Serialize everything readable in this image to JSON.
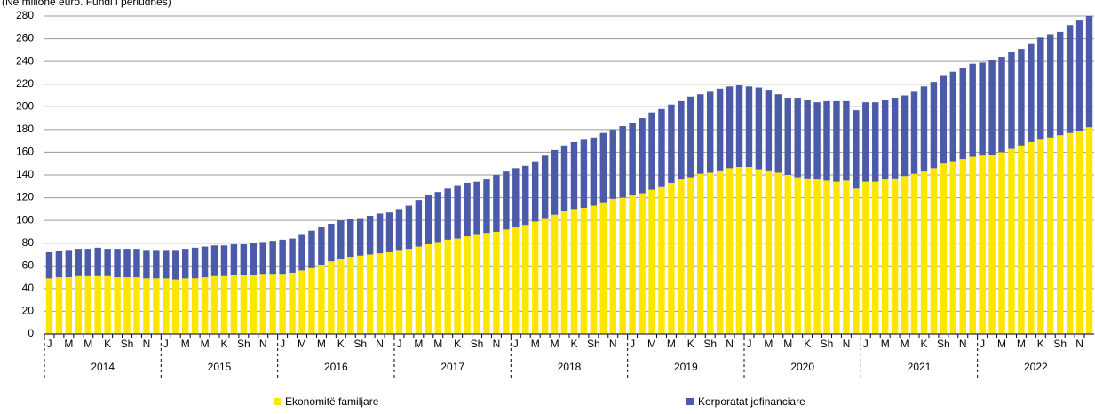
{
  "chart_data": {
    "type": "stacked_bar",
    "subtitle": "(Në milionë euro. Fundi i periudhës)",
    "categories": [
      "J",
      null,
      "M",
      null,
      "M",
      null,
      "K",
      null,
      "Sh",
      null,
      "N",
      null,
      "J",
      null,
      "M",
      null,
      "M",
      null,
      "K",
      null,
      "Sh",
      null,
      "N",
      null,
      "J",
      null,
      "M",
      null,
      "M",
      null,
      "K",
      null,
      "Sh",
      null,
      "N",
      null,
      "J",
      null,
      "M",
      null,
      "M",
      null,
      "K",
      null,
      "Sh",
      null,
      "N",
      null,
      "J",
      null,
      "M",
      null,
      "M",
      null,
      "K",
      null,
      "Sh",
      null,
      "N",
      null,
      "J",
      null,
      "M",
      null,
      "M",
      null,
      "K",
      null,
      "Sh",
      null,
      "N",
      null,
      "J",
      null,
      "M",
      null,
      "M",
      null,
      "K",
      null,
      "Sh",
      null,
      "N",
      null,
      "J",
      null,
      "M",
      null,
      "M",
      null,
      "K",
      null,
      "Sh",
      null,
      "N",
      null,
      "J",
      null,
      "M",
      null,
      "M",
      null,
      "K",
      null,
      "Sh",
      null,
      "N",
      null
    ],
    "year_labels": [
      "2014",
      "2015",
      "2016",
      "2017",
      "2018",
      "2019",
      "2020",
      "2021",
      "2022"
    ],
    "series": [
      {
        "name": "Ekonomitë familjare",
        "color": "#ffe600",
        "values": [
          49,
          50,
          50,
          51,
          51,
          51,
          51,
          50,
          50,
          50,
          49,
          49,
          49,
          48,
          49,
          49,
          50,
          51,
          51,
          52,
          52,
          52,
          53,
          53,
          53,
          54,
          56,
          58,
          61,
          64,
          66,
          68,
          69,
          70,
          71,
          72,
          74,
          75,
          77,
          79,
          81,
          83,
          84,
          86,
          88,
          89,
          90,
          92,
          94,
          96,
          99,
          102,
          105,
          108,
          110,
          111,
          113,
          116,
          119,
          120,
          122,
          124,
          127,
          130,
          133,
          136,
          138,
          141,
          142,
          144,
          146,
          147,
          147,
          145,
          144,
          142,
          140,
          138,
          137,
          136,
          135,
          134,
          135,
          128,
          134,
          134,
          136,
          137,
          139,
          141,
          143,
          146,
          150,
          152,
          154,
          156,
          157,
          158,
          160,
          163,
          166,
          169,
          171,
          173,
          175,
          177,
          179,
          182
        ]
      },
      {
        "name": "Korporatat jofinanciare",
        "color": "#4b5ba8",
        "values": [
          23,
          23,
          24,
          24,
          24,
          25,
          24,
          25,
          25,
          25,
          25,
          25,
          25,
          26,
          26,
          27,
          27,
          27,
          27,
          27,
          27,
          28,
          28,
          29,
          30,
          30,
          32,
          33,
          33,
          33,
          34,
          33,
          33,
          34,
          35,
          35,
          36,
          38,
          41,
          43,
          44,
          45,
          47,
          47,
          46,
          47,
          50,
          51,
          52,
          52,
          53,
          55,
          57,
          58,
          59,
          60,
          60,
          61,
          61,
          63,
          64,
          66,
          68,
          68,
          69,
          69,
          71,
          70,
          72,
          72,
          72,
          72,
          71,
          72,
          71,
          69,
          68,
          70,
          69,
          68,
          70,
          71,
          70,
          69,
          70,
          70,
          70,
          71,
          71,
          73,
          75,
          76,
          78,
          79,
          80,
          82,
          82,
          83,
          84,
          85,
          85,
          87,
          90,
          91,
          91,
          95,
          97,
          98
        ]
      }
    ],
    "ylim": [
      0,
      280
    ],
    "yticks": [
      0,
      20,
      40,
      60,
      80,
      100,
      120,
      140,
      160,
      180,
      200,
      220,
      240,
      260,
      280
    ],
    "grid": true
  }
}
